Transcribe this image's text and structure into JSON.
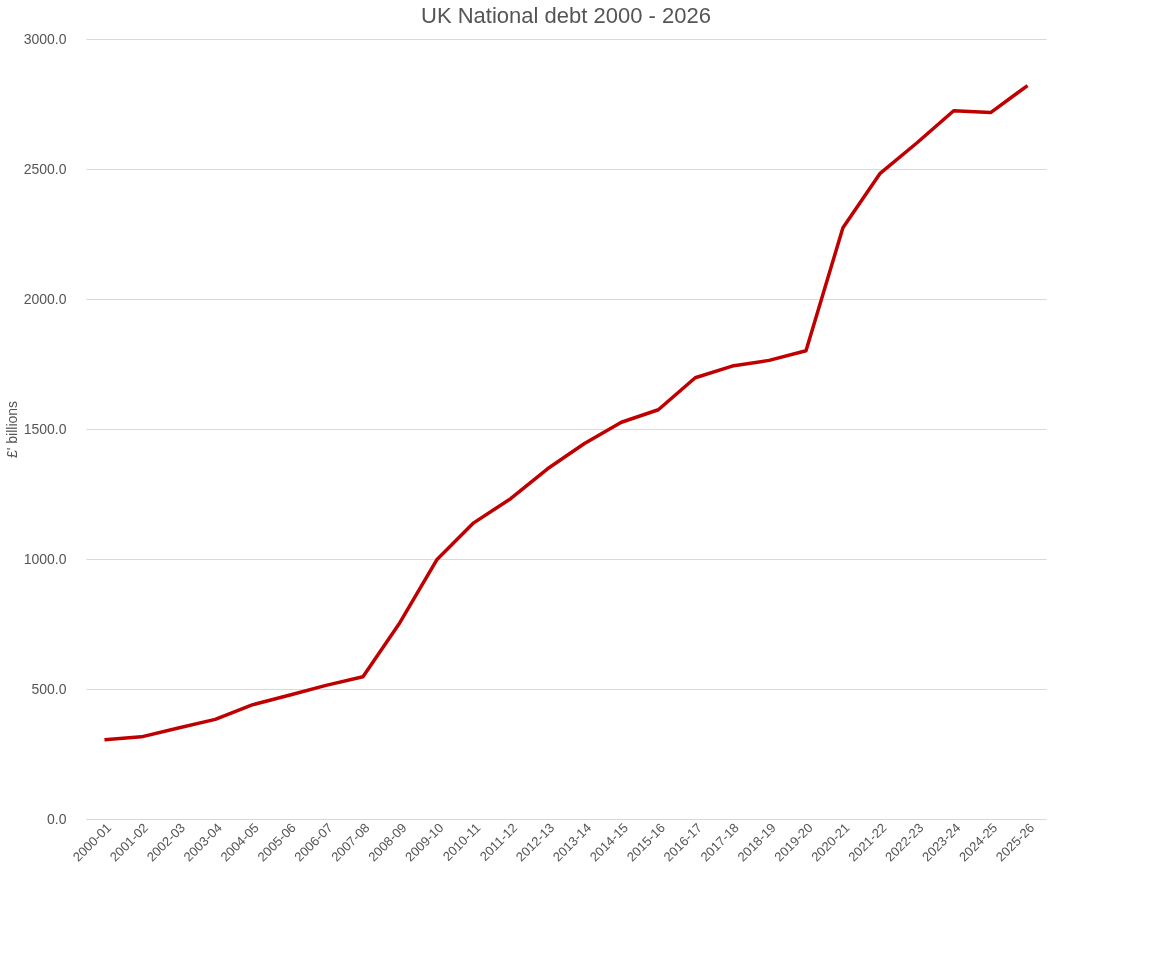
{
  "chart_data": {
    "type": "line",
    "title": "UK National debt 2000 - 2026",
    "ylabel": "£' billions",
    "categories": [
      "2000-01",
      "2001-02",
      "2002-03",
      "2003-04",
      "2004-05",
      "2005-06",
      "2006-07",
      "2007-08",
      "2008-09",
      "2009-10",
      "2010-11",
      "2011-12",
      "2012-13",
      "2013-14",
      "2014-15",
      "2015-16",
      "2016-17",
      "2017-18",
      "2018-19",
      "2019-20",
      "2020-21",
      "2021-22",
      "2022-23",
      "2023-24",
      "2024-25",
      "2025-26"
    ],
    "series": [
      {
        "color": "#c00000",
        "values": [
          305,
          316,
          350,
          383,
          439,
          476,
          514,
          547,
          755,
          997,
          1139,
          1232,
          1347,
          1444,
          1526,
          1574,
          1697,
          1742,
          1764,
          1801,
          2274,
          2482,
          2600,
          2724,
          2717,
          2821
        ]
      }
    ],
    "ylim": [
      0,
      3000
    ],
    "yticks": [
      {
        "value": 0,
        "label": "0.0"
      },
      {
        "value": 500,
        "label": "500.0"
      },
      {
        "value": 1000,
        "label": "1000.0"
      },
      {
        "value": 1500,
        "label": "1500.0"
      },
      {
        "value": 2000,
        "label": "2000.0"
      },
      {
        "value": 2500,
        "label": "2500.0"
      },
      {
        "value": 3000,
        "label": "3000.0"
      }
    ],
    "grid": "y",
    "marker": "none",
    "line_style": "solid"
  }
}
